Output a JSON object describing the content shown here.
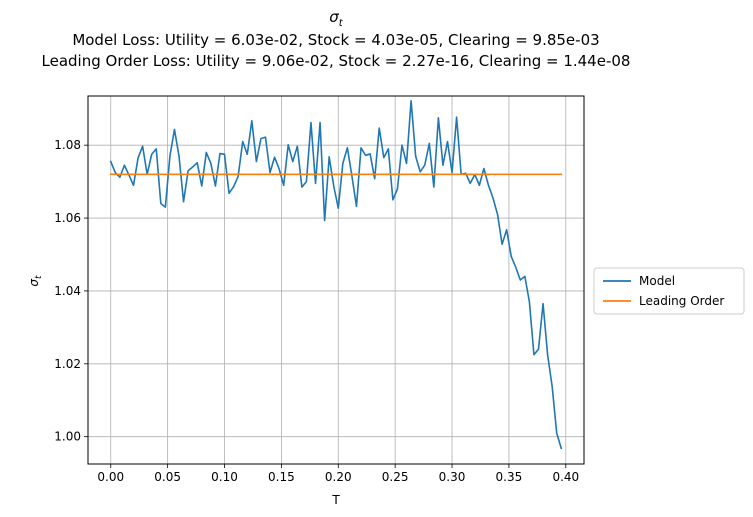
{
  "chart_data": {
    "type": "line",
    "title": "σ_t",
    "title_main": "σ",
    "title_sub": "t",
    "subtitle": [
      "Model Loss: Utility = 6.03e-02, Stock = 4.03e-05, Clearing = 9.85e-03",
      "Leading Order Loss: Utility = 9.06e-02, Stock = 2.27e-16, Clearing = 1.44e-08"
    ],
    "xlabel": "T",
    "ylabel": "σ_t",
    "ylabel_main": "σ",
    "ylabel_sub": "t",
    "xlim": [
      -0.02,
      0.416
    ],
    "ylim": [
      0.9925,
      1.0935
    ],
    "xticks": [
      0.0,
      0.05,
      0.1,
      0.15,
      0.2,
      0.25,
      0.3,
      0.35,
      0.4
    ],
    "xtick_labels": [
      "0.00",
      "0.05",
      "0.10",
      "0.15",
      "0.20",
      "0.25",
      "0.30",
      "0.35",
      "0.40"
    ],
    "yticks": [
      1.0,
      1.02,
      1.04,
      1.06,
      1.08
    ],
    "ytick_labels": [
      "1.00",
      "1.02",
      "1.04",
      "1.06",
      "1.08"
    ],
    "grid": true,
    "legend_position": "right-outside",
    "series": [
      {
        "name": "Model",
        "color": "#1f77b4",
        "x": [
          0.0,
          0.004,
          0.008,
          0.012,
          0.016,
          0.02,
          0.024,
          0.028,
          0.032,
          0.036,
          0.04,
          0.044,
          0.048,
          0.052,
          0.056,
          0.06,
          0.064,
          0.068,
          0.072,
          0.076,
          0.08,
          0.084,
          0.088,
          0.092,
          0.096,
          0.1,
          0.104,
          0.108,
          0.112,
          0.116,
          0.12,
          0.124,
          0.128,
          0.132,
          0.136,
          0.14,
          0.144,
          0.148,
          0.152,
          0.156,
          0.16,
          0.164,
          0.168,
          0.172,
          0.176,
          0.18,
          0.184,
          0.188,
          0.192,
          0.196,
          0.2,
          0.204,
          0.208,
          0.212,
          0.216,
          0.22,
          0.224,
          0.228,
          0.232,
          0.236,
          0.24,
          0.244,
          0.248,
          0.252,
          0.256,
          0.26,
          0.264,
          0.268,
          0.272,
          0.276,
          0.28,
          0.284,
          0.288,
          0.292,
          0.296,
          0.3,
          0.304,
          0.308,
          0.312,
          0.316,
          0.32,
          0.324,
          0.328,
          0.332,
          0.336,
          0.34,
          0.344,
          0.348,
          0.352,
          0.356,
          0.36,
          0.364,
          0.368,
          0.372,
          0.376,
          0.38,
          0.384,
          0.388,
          0.392,
          0.396
        ],
        "values": [
          1.0755,
          1.0725,
          1.0712,
          1.0745,
          1.0718,
          1.069,
          1.0765,
          1.0797,
          1.072,
          1.0775,
          1.079,
          1.064,
          1.063,
          1.077,
          1.0843,
          1.077,
          1.0645,
          1.073,
          1.074,
          1.0752,
          1.0688,
          1.078,
          1.075,
          1.0688,
          1.0777,
          1.0775,
          1.0668,
          1.0686,
          1.0715,
          1.081,
          1.0775,
          1.0867,
          1.0755,
          1.0818,
          1.0822,
          1.0725,
          1.0767,
          1.0735,
          1.069,
          1.0801,
          1.0755,
          1.0797,
          1.0685,
          1.07,
          1.0862,
          1.0695,
          1.0862,
          1.0593,
          1.0768,
          1.0688,
          1.0627,
          1.075,
          1.0793,
          1.0715,
          1.0632,
          1.0793,
          1.0772,
          1.0776,
          1.0708,
          1.0847,
          1.0766,
          1.079,
          1.065,
          1.068,
          1.08,
          1.075,
          1.0922,
          1.077,
          1.0727,
          1.0745,
          1.0805,
          1.0685,
          1.0875,
          1.0745,
          1.081,
          1.0725,
          1.0877,
          1.072,
          1.0723,
          1.0695,
          1.072,
          1.069,
          1.0736,
          1.069,
          1.0655,
          1.061,
          1.0528,
          1.0568,
          1.0495,
          1.0465,
          1.043,
          1.044,
          1.037,
          1.0225,
          1.024,
          1.0365,
          1.0225,
          1.0138,
          1.001,
          0.9968
        ]
      },
      {
        "name": "Leading Order",
        "color": "#ff7f0e",
        "x": [
          0.0,
          0.396
        ],
        "values": [
          1.072,
          1.072
        ]
      }
    ]
  }
}
